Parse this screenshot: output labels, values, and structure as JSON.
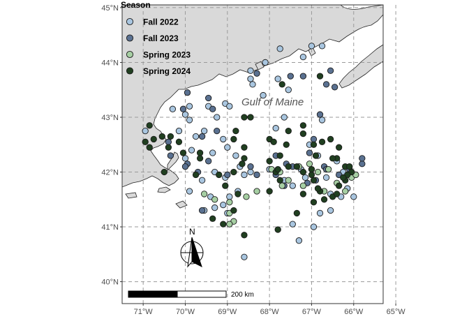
{
  "map": {
    "place_label": "Gulf of Maine",
    "north_label": "N",
    "scale_label": "200 km",
    "x_ticks": [
      {
        "lon": -71,
        "label": "71°W"
      },
      {
        "lon": -70,
        "label": "70°W"
      },
      {
        "lon": -69,
        "label": "69°W"
      },
      {
        "lon": -68,
        "label": "68°W"
      },
      {
        "lon": -67,
        "label": "67°W"
      },
      {
        "lon": -66,
        "label": "66°W"
      },
      {
        "lon": -65,
        "label": "65°W"
      }
    ],
    "y_ticks": [
      {
        "lat": 45,
        "label": "45°N"
      },
      {
        "lat": 44,
        "label": "44°N"
      },
      {
        "lat": 43,
        "label": "43°N"
      },
      {
        "lat": 42,
        "label": "42°N"
      },
      {
        "lat": 41,
        "label": "41°N"
      },
      {
        "lat": 40,
        "label": "40°N"
      }
    ],
    "colors": {
      "land": "#d9d9d9",
      "land_stroke": "#222222",
      "grid": "#9a9a9a"
    }
  },
  "legend": {
    "title": "Season",
    "entries": [
      {
        "label": "Fall 2022",
        "color": "#a9c6e0"
      },
      {
        "label": "Fall 2023",
        "color": "#5a7191"
      },
      {
        "label": "Spring 2023",
        "color": "#a6cfa3"
      },
      {
        "label": "Spring 2024",
        "color": "#203f20"
      }
    ]
  },
  "chart_data": {
    "type": "scatter",
    "xlim": [
      -71.5,
      -65.3
    ],
    "ylim": [
      39.6,
      45.05
    ],
    "xlabel": "",
    "ylabel": "",
    "grid": true,
    "legend_position": "top-left",
    "series": [
      {
        "name": "Fall 2022",
        "color": "#a9c6e0",
        "points": [
          [
            -67.0,
            44.3
          ],
          [
            -67.2,
            44.1
          ],
          [
            -66.75,
            44.3
          ],
          [
            -67.75,
            44.25
          ],
          [
            -68.1,
            44.0
          ],
          [
            -68.45,
            43.85
          ],
          [
            -68.45,
            43.7
          ],
          [
            -68.4,
            43.6
          ],
          [
            -67.8,
            43.7
          ],
          [
            -67.55,
            43.5
          ],
          [
            -69.9,
            43.2
          ],
          [
            -69.45,
            43.2
          ],
          [
            -69.05,
            43.25
          ],
          [
            -68.95,
            43.2
          ],
          [
            -69.25,
            43.0
          ],
          [
            -70.3,
            43.15
          ],
          [
            -70.0,
            43.05
          ],
          [
            -69.9,
            42.95
          ],
          [
            -70.15,
            42.75
          ],
          [
            -70.95,
            42.75
          ],
          [
            -69.75,
            42.65
          ],
          [
            -69.55,
            42.75
          ],
          [
            -69.1,
            42.6
          ],
          [
            -69.0,
            42.45
          ],
          [
            -69.35,
            42.35
          ],
          [
            -69.85,
            42.4
          ],
          [
            -70.0,
            42.25
          ],
          [
            -68.8,
            42.3
          ],
          [
            -68.7,
            42.1
          ],
          [
            -69.3,
            42.0
          ],
          [
            -69.05,
            41.9
          ],
          [
            -69.6,
            41.85
          ],
          [
            -69.9,
            41.65
          ],
          [
            -69.4,
            41.55
          ],
          [
            -69.3,
            41.35
          ],
          [
            -69.55,
            41.3
          ],
          [
            -69.1,
            41.4
          ],
          [
            -68.95,
            41.55
          ],
          [
            -68.75,
            41.65
          ],
          [
            -68.6,
            41.95
          ],
          [
            -68.45,
            42.0
          ],
          [
            -68.0,
            42.05
          ],
          [
            -67.65,
            41.85
          ],
          [
            -67.45,
            41.75
          ],
          [
            -67.15,
            41.9
          ],
          [
            -66.65,
            41.9
          ],
          [
            -66.55,
            41.6
          ],
          [
            -66.55,
            41.3
          ],
          [
            -66.8,
            41.25
          ],
          [
            -66.95,
            41.0
          ],
          [
            -67.45,
            41.05
          ],
          [
            -67.3,
            40.75
          ],
          [
            -68.6,
            40.45
          ],
          [
            -69.0,
            41.25
          ],
          [
            -66.3,
            41.55
          ],
          [
            -66.0,
            41.55
          ],
          [
            -66.15,
            41.7
          ],
          [
            -66.25,
            42.0
          ],
          [
            -66.85,
            42.3
          ],
          [
            -67.85,
            42.8
          ],
          [
            -67.65,
            43.0
          ],
          [
            -66.75,
            42.95
          ],
          [
            -67.05,
            42.5
          ],
          [
            -67.25,
            42.05
          ],
          [
            -66.4,
            42.2
          ],
          [
            -68.15,
            43.4
          ]
        ]
      },
      {
        "name": "Fall 2023",
        "color": "#5a7191",
        "points": [
          [
            -66.55,
            43.85
          ],
          [
            -66.45,
            43.55
          ],
          [
            -66.65,
            43.6
          ],
          [
            -67.2,
            43.75
          ],
          [
            -67.5,
            43.75
          ],
          [
            -68.3,
            43.8
          ],
          [
            -69.95,
            43.45
          ],
          [
            -69.45,
            43.35
          ],
          [
            -69.35,
            43.15
          ],
          [
            -70.05,
            43.15
          ],
          [
            -70.4,
            42.55
          ],
          [
            -70.35,
            42.3
          ],
          [
            -69.95,
            42.15
          ],
          [
            -69.6,
            42.65
          ],
          [
            -69.25,
            42.75
          ],
          [
            -69.45,
            42.2
          ],
          [
            -69.0,
            41.95
          ],
          [
            -68.45,
            42.1
          ],
          [
            -68.3,
            41.95
          ],
          [
            -67.85,
            42.3
          ],
          [
            -67.1,
            41.8
          ],
          [
            -66.9,
            41.85
          ],
          [
            -66.7,
            42.1
          ],
          [
            -66.65,
            42.05
          ],
          [
            -66.35,
            41.95
          ],
          [
            -65.8,
            42.15
          ],
          [
            -65.8,
            42.25
          ],
          [
            -66.1,
            42.05
          ],
          [
            -67.05,
            42.35
          ],
          [
            -67.45,
            42.1
          ],
          [
            -67.6,
            42.15
          ],
          [
            -69.6,
            41.3
          ],
          [
            -69.7,
            42.0
          ],
          [
            -70.0,
            42.1
          ],
          [
            -66.8,
            43.05
          ],
          [
            -67.85,
            41.95
          ],
          [
            -67.65,
            41.75
          ],
          [
            -66.95,
            42.6
          ]
        ]
      },
      {
        "name": "Spring 2023",
        "color": "#a6cfa3",
        "points": [
          [
            -69.55,
            41.6
          ],
          [
            -69.3,
            41.5
          ],
          [
            -68.95,
            41.45
          ],
          [
            -68.95,
            41.25
          ],
          [
            -68.85,
            41.1
          ],
          [
            -68.95,
            41.05
          ],
          [
            -68.55,
            41.55
          ],
          [
            -68.3,
            41.65
          ],
          [
            -67.95,
            42.05
          ],
          [
            -67.7,
            41.75
          ],
          [
            -67.55,
            41.85
          ],
          [
            -67.3,
            42.1
          ],
          [
            -67.05,
            42.15
          ],
          [
            -66.85,
            42.0
          ],
          [
            -66.6,
            42.05
          ],
          [
            -66.4,
            41.8
          ],
          [
            -66.2,
            41.65
          ],
          [
            -66.05,
            41.9
          ],
          [
            -65.95,
            41.95
          ],
          [
            -66.7,
            41.65
          ],
          [
            -67.2,
            41.75
          ],
          [
            -67.75,
            42.0
          ]
        ]
      },
      {
        "name": "Spring 2024",
        "color": "#203f20",
        "points": [
          [
            -70.85,
            42.85
          ],
          [
            -70.75,
            42.6
          ],
          [
            -70.55,
            42.65
          ],
          [
            -70.35,
            42.65
          ],
          [
            -70.15,
            42.55
          ],
          [
            -70.4,
            42.45
          ],
          [
            -70.05,
            42.35
          ],
          [
            -70.95,
            42.55
          ],
          [
            -70.85,
            42.45
          ],
          [
            -70.5,
            42.0
          ],
          [
            -69.65,
            42.35
          ],
          [
            -69.65,
            42.25
          ],
          [
            -69.2,
            41.95
          ],
          [
            -68.85,
            42.0
          ],
          [
            -68.65,
            42.15
          ],
          [
            -68.6,
            42.25
          ],
          [
            -68.6,
            42.45
          ],
          [
            -68.85,
            42.6
          ],
          [
            -68.8,
            42.75
          ],
          [
            -68.6,
            43.0
          ],
          [
            -68.45,
            43.0
          ],
          [
            -68.0,
            42.6
          ],
          [
            -67.9,
            42.55
          ],
          [
            -68.0,
            42.2
          ],
          [
            -67.85,
            42.0
          ],
          [
            -67.75,
            41.85
          ],
          [
            -67.55,
            42.1
          ],
          [
            -67.35,
            42.1
          ],
          [
            -67.2,
            42.0
          ],
          [
            -67.0,
            42.05
          ],
          [
            -66.95,
            41.85
          ],
          [
            -66.8,
            41.65
          ],
          [
            -66.7,
            41.5
          ],
          [
            -66.5,
            41.55
          ],
          [
            -66.35,
            41.75
          ],
          [
            -66.4,
            41.6
          ],
          [
            -66.2,
            41.85
          ],
          [
            -66.05,
            42.0
          ],
          [
            -66.2,
            42.1
          ],
          [
            -66.4,
            42.25
          ],
          [
            -66.35,
            42.45
          ],
          [
            -66.55,
            42.6
          ],
          [
            -66.75,
            42.55
          ],
          [
            -66.95,
            42.5
          ],
          [
            -67.2,
            42.7
          ],
          [
            -67.2,
            42.85
          ],
          [
            -67.55,
            42.75
          ],
          [
            -67.6,
            42.5
          ],
          [
            -67.75,
            42.3
          ],
          [
            -67.8,
            42.05
          ],
          [
            -67.0,
            41.95
          ],
          [
            -66.9,
            42.3
          ],
          [
            -66.5,
            42.25
          ],
          [
            -66.15,
            41.95
          ],
          [
            -69.75,
            41.95
          ],
          [
            -69.05,
            41.75
          ],
          [
            -68.75,
            41.6
          ],
          [
            -68.85,
            41.3
          ],
          [
            -68.6,
            40.85
          ],
          [
            -69.1,
            41.05
          ],
          [
            -69.35,
            41.15
          ],
          [
            -67.8,
            40.95
          ],
          [
            -67.35,
            41.25
          ],
          [
            -66.95,
            41.45
          ],
          [
            -66.85,
            41.7
          ],
          [
            -67.2,
            41.6
          ],
          [
            -68.0,
            41.65
          ],
          [
            -67.7,
            43.6
          ],
          [
            -66.8,
            43.75
          ],
          [
            -68.65,
            42.15
          ],
          [
            -66.1,
            42.1
          ],
          [
            -66.25,
            41.9
          ]
        ]
      }
    ]
  }
}
